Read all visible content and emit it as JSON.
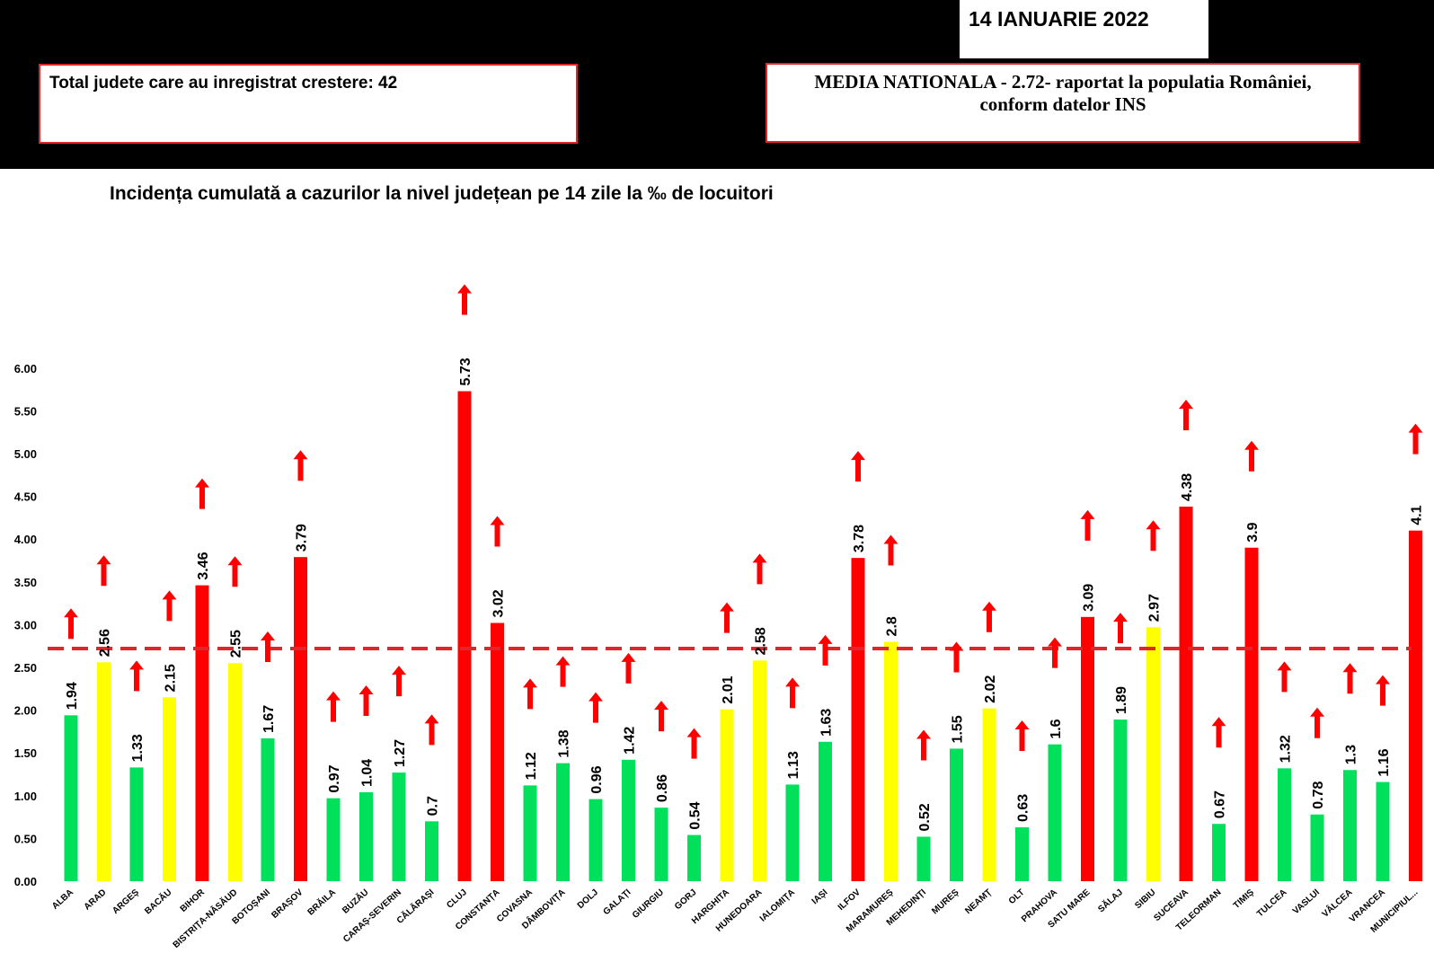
{
  "header": {
    "date": "14 IANUARIE 2022",
    "total_label": "Total judete care au inregistrat crestere: 42",
    "media_line1": "MEDIA NATIONALA - 2.72-  raportat la populatia României,",
    "media_line2": "conform datelor INS"
  },
  "colors": {
    "red": "#ff0000",
    "yellow": "#ffff00",
    "green": "#00e05a",
    "arrow": "#ff0000",
    "dashline": "#e0262b"
  },
  "chart_data": {
    "type": "bar",
    "title": "Incidența cumulată a cazurilor la nivel județean pe 14 zile la ‰ de locuitori",
    "xlabel": "",
    "ylabel": "",
    "ylim": [
      0,
      6
    ],
    "yticks": [
      "0.00",
      "0.50",
      "1.00",
      "1.50",
      "2.00",
      "2.50",
      "3.00",
      "3.50",
      "4.00",
      "4.50",
      "5.00",
      "5.50",
      "6.00"
    ],
    "reference_line": {
      "label": "MEDIA NATIONALA",
      "value": 2.72,
      "style": "dashed"
    },
    "categories": [
      "ALBA",
      "ARAD",
      "ARGEȘ",
      "BACĂU",
      "BIHOR",
      "BISTRIȚA-NĂSĂUD",
      "BOTOȘANI",
      "BRAȘOV",
      "BRĂILA",
      "BUZĂU",
      "CARAȘ-SEVERIN",
      "CĂLĂRAȘI",
      "CLUJ",
      "CONSTANȚA",
      "COVASNA",
      "DÂMBOVIȚA",
      "DOLJ",
      "GALAȚI",
      "GIURGIU",
      "GORJ",
      "HARGHITA",
      "HUNEDOARA",
      "IALOMIȚA",
      "IAȘI",
      "ILFOV",
      "MARAMUREȘ",
      "MEHEDINȚI",
      "MUREȘ",
      "NEAMȚ",
      "OLT",
      "PRAHOVA",
      "SATU MARE",
      "SĂLAJ",
      "SIBIU",
      "SUCEAVA",
      "TELEORMAN",
      "TIMIȘ",
      "TULCEA",
      "VASLUI",
      "VÂLCEA",
      "VRANCEA",
      "MUNICIPIUL..."
    ],
    "values": [
      1.94,
      2.56,
      1.33,
      2.15,
      3.46,
      2.55,
      1.67,
      3.79,
      0.97,
      1.04,
      1.27,
      0.7,
      5.73,
      3.02,
      1.12,
      1.38,
      0.96,
      1.42,
      0.86,
      0.54,
      2.01,
      2.58,
      1.13,
      1.63,
      3.78,
      2.8,
      0.52,
      1.55,
      2.02,
      0.63,
      1.6,
      3.09,
      1.89,
      2.97,
      4.38,
      0.67,
      3.9,
      1.32,
      0.78,
      1.3,
      1.16,
      4.1
    ],
    "data_labels": [
      "1.94",
      "2.56",
      "1.33",
      "2.15",
      "3.46",
      "2.55",
      "1.67",
      "3.79",
      "0.97",
      "1.04",
      "1.27",
      "0.7",
      "5.73",
      "3.02",
      "1.12",
      "1.38",
      "0.96",
      "1.42",
      "0.86",
      "0.54",
      "2.01",
      "2.58",
      "1.13",
      "1.63",
      "3.78",
      "2.8",
      "0.52",
      "1.55",
      "2.02",
      "0.63",
      "1.6",
      "3.09",
      "1.89",
      "2.97",
      "4.38",
      "0.67",
      "3.9",
      "1.32",
      "0.78",
      "1.3",
      "1.16",
      "4.1"
    ],
    "bar_colors": [
      "green",
      "yellow",
      "green",
      "yellow",
      "red",
      "yellow",
      "green",
      "red",
      "green",
      "green",
      "green",
      "green",
      "red",
      "red",
      "green",
      "green",
      "green",
      "green",
      "green",
      "green",
      "yellow",
      "yellow",
      "green",
      "green",
      "red",
      "yellow",
      "green",
      "green",
      "yellow",
      "green",
      "green",
      "red",
      "green",
      "yellow",
      "red",
      "green",
      "red",
      "green",
      "green",
      "green",
      "green",
      "red"
    ],
    "trend": "all increasing (red up arrows)"
  }
}
